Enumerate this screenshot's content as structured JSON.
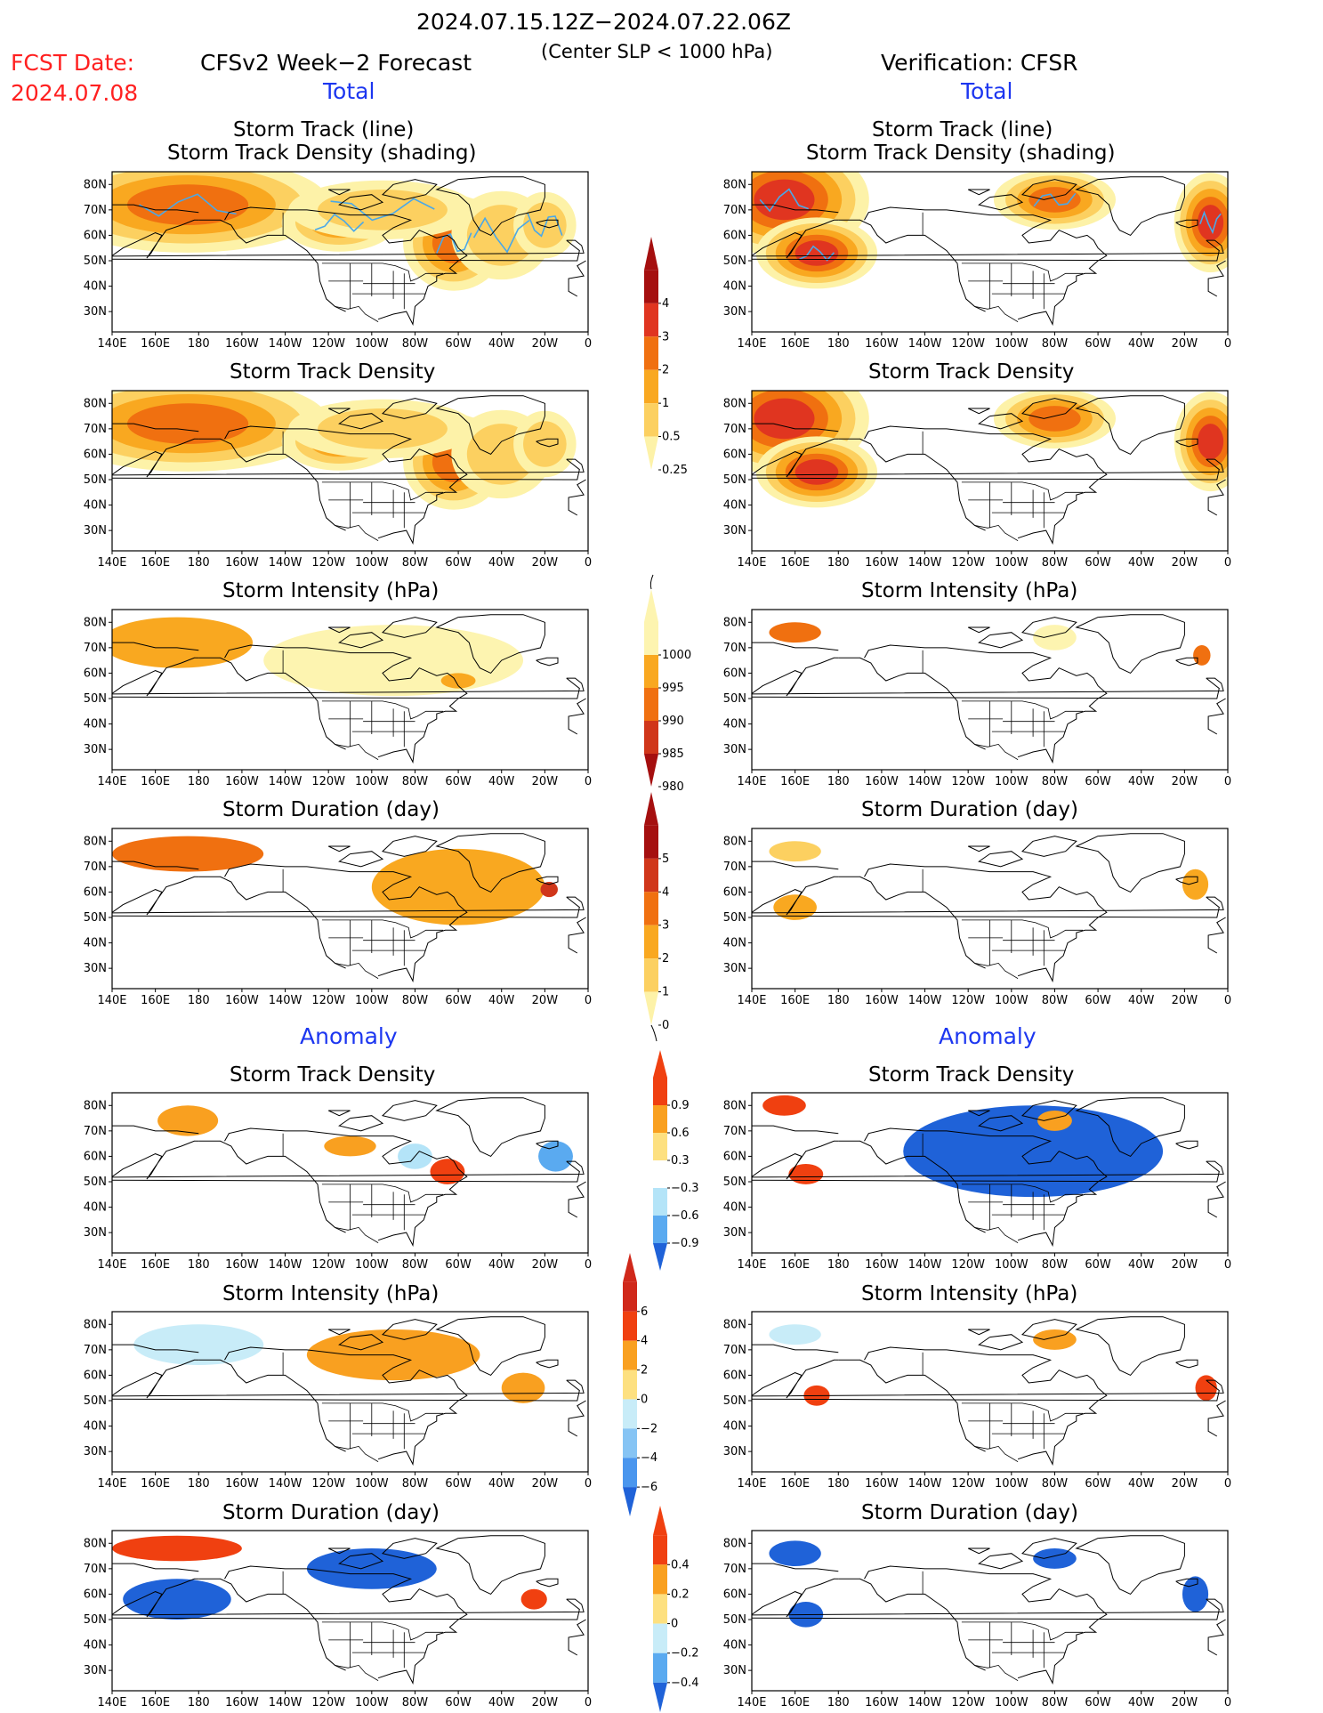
{
  "header": {
    "period": "2024.07.15.12Z−2024.07.22.06Z",
    "fcst_label": "FCST Date:",
    "fcst_date": "2024.07.08",
    "model_title": "CFSv2 Week−2 Forecast",
    "criterion": "(Center SLP < 1000 hPa)",
    "verification": "Verification: CFSR",
    "total_left": "Total",
    "total_right": "Total",
    "anomaly_left": "Anomaly",
    "anomaly_right": "Anomaly"
  },
  "panel_titles": {
    "track_line": "Storm Track (line)",
    "track_shading": "Storm Track Density (shading)",
    "density": "Storm Track Density",
    "intensity": "Storm Intensity (hPa)",
    "duration": "Storm Duration (day)"
  },
  "axes": {
    "lon_ticks": [
      "140E",
      "160E",
      "180",
      "160W",
      "140W",
      "120W",
      "100W",
      "80W",
      "60W",
      "40W",
      "20W",
      "0"
    ],
    "lat_ticks": [
      "80N",
      "70N",
      "60N",
      "50N",
      "40N",
      "30N"
    ]
  },
  "colorbars": {
    "density_total": {
      "labels": [
        "4",
        "3",
        "2",
        "1",
        "0.5",
        "0.25"
      ],
      "colors": [
        "#a50f0f",
        "#e03520",
        "#f07010",
        "#f9a820",
        "#fcd060",
        "#fdf2a8"
      ]
    },
    "intensity_total": {
      "labels": [
        "1000",
        "995",
        "990",
        "985",
        "980"
      ],
      "colors": [
        "#fdf4b0",
        "#f9a820",
        "#f07010",
        "#d0361a",
        "#a50f0f"
      ]
    },
    "duration_total": {
      "labels": [
        "5",
        "4",
        "3",
        "2",
        "1",
        "0"
      ],
      "colors": [
        "#a50f0f",
        "#d0361a",
        "#f07010",
        "#f9a820",
        "#fcd060",
        "#fdf2a8"
      ]
    },
    "density_anom": {
      "labels": [
        "0.9",
        "0.6",
        "0.3",
        "−0.3",
        "−0.6",
        "−0.9"
      ],
      "colors": [
        "#f04010",
        "#f9a020",
        "#fde080",
        "#ffffff",
        "#b4e4f8",
        "#5aaaf0",
        "#1f62d8"
      ]
    },
    "intensity_anom": {
      "labels": [
        "6",
        "4",
        "2",
        "0",
        "−2",
        "−4",
        "−6"
      ],
      "colors": [
        "#d0281a",
        "#f04010",
        "#f9a020",
        "#fde080",
        "#c8ecf8",
        "#86c4f4",
        "#4a96ee",
        "#1f62d8"
      ]
    },
    "duration_anom": {
      "labels": [
        "0.4",
        "0.2",
        "0",
        "−0.2",
        "−0.4"
      ],
      "colors": [
        "#f04010",
        "#f9a020",
        "#fde080",
        "#c8ecf8",
        "#5aaaf0",
        "#1f62d8"
      ]
    }
  },
  "chart_data": [
    {
      "type": "heatmap",
      "title": "Storm Track (line) / Storm Track Density (shading)",
      "column": "CFSv2 Week-2 Forecast",
      "section": "Total",
      "variable": "storm_track_density",
      "regions": [
        {
          "lon": 175,
          "lat": 72,
          "level": 3,
          "rx": 28,
          "ry": 8
        },
        {
          "lon": -115,
          "lat": 65,
          "level": 2,
          "rx": 14,
          "ry": 6
        },
        {
          "lon": -62,
          "lat": 57,
          "level": 3,
          "rx": 10,
          "ry": 8
        },
        {
          "lon": -40,
          "lat": 60,
          "level": 1,
          "rx": 16,
          "ry": 12
        },
        {
          "lon": -95,
          "lat": 70,
          "level": 1,
          "rx": 30,
          "ry": 8
        },
        {
          "lon": -20,
          "lat": 64,
          "level": 1,
          "rx": 10,
          "ry": 9
        }
      ]
    },
    {
      "type": "heatmap",
      "title": "Storm Track (line) / Storm Track Density (shading)",
      "column": "Verification: CFSR",
      "section": "Total",
      "variable": "storm_track_density",
      "regions": [
        {
          "lon": 155,
          "lat": 74,
          "level": 4,
          "rx": 14,
          "ry": 8
        },
        {
          "lon": 170,
          "lat": 53,
          "level": 4,
          "rx": 10,
          "ry": 5
        },
        {
          "lon": -80,
          "lat": 74,
          "level": 3,
          "rx": 12,
          "ry": 5
        },
        {
          "lon": -8,
          "lat": 65,
          "level": 4,
          "rx": 6,
          "ry": 7
        }
      ]
    },
    {
      "type": "heatmap",
      "title": "Storm Track Density",
      "column": "CFSv2 Week-2 Forecast",
      "section": "Total",
      "variable": "storm_track_density",
      "regions": [
        {
          "lon": 175,
          "lat": 72,
          "level": 3,
          "rx": 28,
          "ry": 8
        },
        {
          "lon": -115,
          "lat": 65,
          "level": 2,
          "rx": 14,
          "ry": 6
        },
        {
          "lon": -62,
          "lat": 57,
          "level": 3,
          "rx": 10,
          "ry": 8
        },
        {
          "lon": -40,
          "lat": 60,
          "level": 1,
          "rx": 16,
          "ry": 12
        },
        {
          "lon": -95,
          "lat": 70,
          "level": 1,
          "rx": 30,
          "ry": 8
        },
        {
          "lon": -20,
          "lat": 64,
          "level": 1,
          "rx": 10,
          "ry": 9
        }
      ]
    },
    {
      "type": "heatmap",
      "title": "Storm Track Density",
      "column": "Verification: CFSR",
      "section": "Total",
      "variable": "storm_track_density",
      "regions": [
        {
          "lon": 155,
          "lat": 74,
          "level": 4,
          "rx": 14,
          "ry": 8
        },
        {
          "lon": 170,
          "lat": 53,
          "level": 4,
          "rx": 10,
          "ry": 5
        },
        {
          "lon": -80,
          "lat": 74,
          "level": 3,
          "rx": 12,
          "ry": 5
        },
        {
          "lon": -8,
          "lat": 65,
          "level": 4,
          "rx": 6,
          "ry": 7
        }
      ]
    },
    {
      "type": "heatmap",
      "title": "Storm Intensity (hPa)",
      "column": "CFSv2 Week-2 Forecast",
      "section": "Total",
      "variable": "storm_intensity_hpa",
      "regions": [
        {
          "lon": 170,
          "lat": 72,
          "level": "995",
          "rx": 35,
          "ry": 10
        },
        {
          "lon": -90,
          "lat": 65,
          "level": "1000",
          "rx": 60,
          "ry": 14
        },
        {
          "lon": -60,
          "lat": 57,
          "level": "995",
          "rx": 8,
          "ry": 3
        }
      ]
    },
    {
      "type": "heatmap",
      "title": "Storm Intensity (hPa)",
      "column": "Verification: CFSR",
      "section": "Total",
      "variable": "storm_intensity_hpa",
      "regions": [
        {
          "lon": 160,
          "lat": 76,
          "level": "990",
          "rx": 12,
          "ry": 4
        },
        {
          "lon": -80,
          "lat": 74,
          "level": "1000",
          "rx": 10,
          "ry": 5
        },
        {
          "lon": -12,
          "lat": 67,
          "level": "990",
          "rx": 4,
          "ry": 4
        }
      ]
    },
    {
      "type": "heatmap",
      "title": "Storm Duration (day)",
      "column": "CFSv2 Week-2 Forecast",
      "section": "Total",
      "variable": "storm_duration_day",
      "regions": [
        {
          "lon": 175,
          "lat": 75,
          "level": "3",
          "rx": 35,
          "ry": 7
        },
        {
          "lon": -60,
          "lat": 62,
          "level": "2",
          "rx": 40,
          "ry": 15
        },
        {
          "lon": -18,
          "lat": 61,
          "level": "4",
          "rx": 4,
          "ry": 3
        }
      ]
    },
    {
      "type": "heatmap",
      "title": "Storm Duration (day)",
      "column": "Verification: CFSR",
      "section": "Total",
      "variable": "storm_duration_day",
      "regions": [
        {
          "lon": 160,
          "lat": 76,
          "level": "1",
          "rx": 12,
          "ry": 4
        },
        {
          "lon": 160,
          "lat": 54,
          "level": "2",
          "rx": 10,
          "ry": 5
        },
        {
          "lon": -15,
          "lat": 63,
          "level": "2",
          "rx": 6,
          "ry": 6
        }
      ]
    },
    {
      "type": "heatmap",
      "title": "Storm Track Density",
      "column": "CFSv2 Week-2 Forecast",
      "section": "Anomaly",
      "variable": "storm_track_density_anomaly",
      "regions": [
        {
          "lon": 175,
          "lat": 74,
          "level": 0.6,
          "rx": 14,
          "ry": 6
        },
        {
          "lon": -110,
          "lat": 64,
          "level": 0.6,
          "rx": 12,
          "ry": 4
        },
        {
          "lon": -65,
          "lat": 54,
          "level": 0.9,
          "rx": 8,
          "ry": 5
        },
        {
          "lon": -15,
          "lat": 60,
          "level": -0.6,
          "rx": 8,
          "ry": 6
        },
        {
          "lon": -80,
          "lat": 60,
          "level": -0.3,
          "rx": 8,
          "ry": 5
        }
      ]
    },
    {
      "type": "heatmap",
      "title": "Storm Track Density",
      "column": "Verification: CFSR",
      "section": "Anomaly",
      "variable": "storm_track_density_anomaly",
      "regions": [
        {
          "lon": -90,
          "lat": 62,
          "level": -0.9,
          "rx": 60,
          "ry": 18
        },
        {
          "lon": 155,
          "lat": 80,
          "level": 0.9,
          "rx": 10,
          "ry": 4
        },
        {
          "lon": 165,
          "lat": 53,
          "level": 0.9,
          "rx": 8,
          "ry": 4
        },
        {
          "lon": -80,
          "lat": 74,
          "level": 0.6,
          "rx": 8,
          "ry": 4
        }
      ]
    },
    {
      "type": "heatmap",
      "title": "Storm Intensity (hPa)",
      "column": "CFSv2 Week-2 Forecast",
      "section": "Anomaly",
      "variable": "storm_intensity_anomaly_hpa",
      "regions": [
        {
          "lon": 180,
          "lat": 72,
          "level": -2,
          "rx": 30,
          "ry": 8
        },
        {
          "lon": -90,
          "lat": 68,
          "level": 2,
          "rx": 40,
          "ry": 10
        },
        {
          "lon": -30,
          "lat": 55,
          "level": 2,
          "rx": 10,
          "ry": 6
        }
      ]
    },
    {
      "type": "heatmap",
      "title": "Storm Intensity (hPa)",
      "column": "Verification: CFSR",
      "section": "Anomaly",
      "variable": "storm_intensity_anomaly_hpa",
      "regions": [
        {
          "lon": 160,
          "lat": 76,
          "level": -2,
          "rx": 12,
          "ry": 4
        },
        {
          "lon": 170,
          "lat": 52,
          "level": 4,
          "rx": 6,
          "ry": 4
        },
        {
          "lon": -80,
          "lat": 74,
          "level": 2,
          "rx": 10,
          "ry": 4
        },
        {
          "lon": -10,
          "lat": 55,
          "level": 4,
          "rx": 5,
          "ry": 5
        }
      ]
    },
    {
      "type": "heatmap",
      "title": "Storm Duration (day)",
      "column": "CFSv2 Week-2 Forecast",
      "section": "Anomaly",
      "variable": "storm_duration_anomaly_day",
      "regions": [
        {
          "lon": 170,
          "lat": 78,
          "level": 0.4,
          "rx": 30,
          "ry": 5
        },
        {
          "lon": 170,
          "lat": 58,
          "level": -0.4,
          "rx": 25,
          "ry": 8
        },
        {
          "lon": -100,
          "lat": 70,
          "level": -0.4,
          "rx": 30,
          "ry": 8
        },
        {
          "lon": -25,
          "lat": 58,
          "level": 0.4,
          "rx": 6,
          "ry": 4
        }
      ]
    },
    {
      "type": "heatmap",
      "title": "Storm Duration (day)",
      "column": "Verification: CFSR",
      "section": "Anomaly",
      "variable": "storm_duration_anomaly_day",
      "regions": [
        {
          "lon": 160,
          "lat": 76,
          "level": -0.4,
          "rx": 12,
          "ry": 5
        },
        {
          "lon": 165,
          "lat": 52,
          "level": -0.4,
          "rx": 8,
          "ry": 5
        },
        {
          "lon": -80,
          "lat": 74,
          "level": -0.4,
          "rx": 10,
          "ry": 4
        },
        {
          "lon": -15,
          "lat": 60,
          "level": -0.4,
          "rx": 6,
          "ry": 7
        }
      ]
    }
  ]
}
